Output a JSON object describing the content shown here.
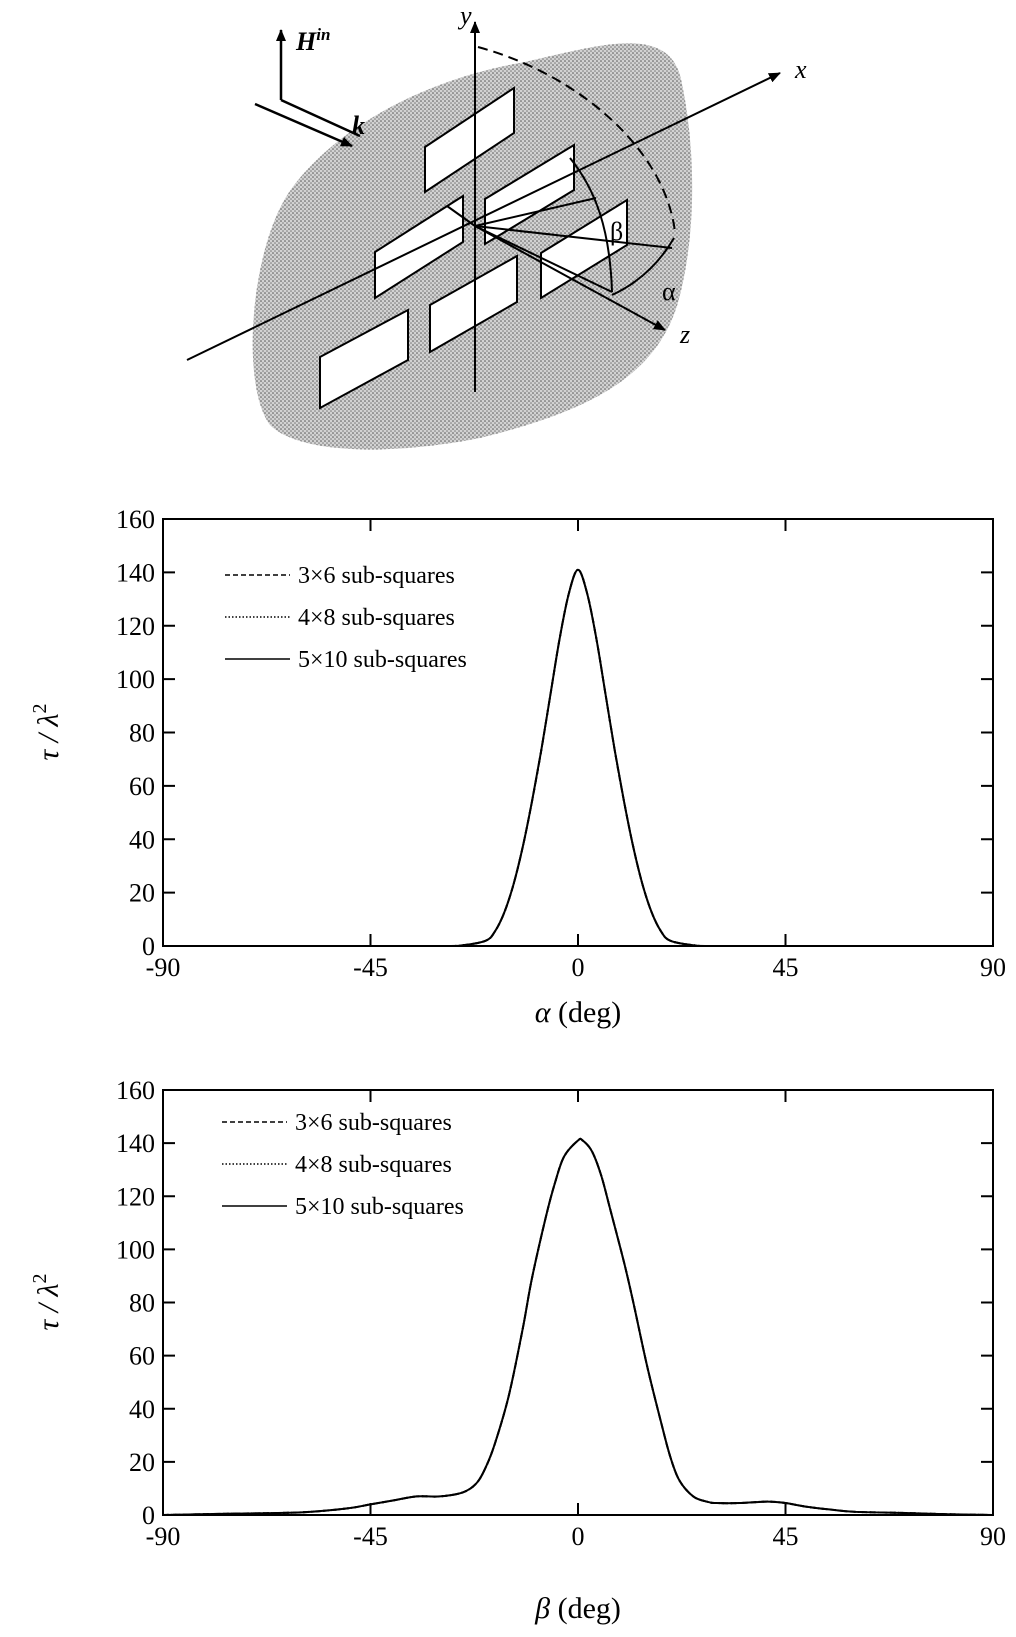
{
  "diagram": {
    "labels": {
      "h_in": "H",
      "h_in_sup": "in",
      "k": "k",
      "x": "x",
      "y": "y",
      "z": "z",
      "alpha": "α",
      "beta": "β"
    }
  },
  "chart_data": [
    {
      "type": "line",
      "title": "",
      "xlabel_symbol": "α",
      "xlabel_rest": " (deg)",
      "ylabel_tau": "τ / λ",
      "ylabel_sup": "2",
      "xlim": [
        -90,
        90
      ],
      "ylim": [
        0,
        160
      ],
      "xticks": [
        -90,
        -45,
        0,
        45,
        90
      ],
      "yticks": [
        0,
        20,
        40,
        60,
        80,
        100,
        120,
        140,
        160
      ],
      "legend_position": "top-left",
      "series": [
        {
          "name": "3×6 sub-squares",
          "style": "dashed",
          "x": [
            -90,
            -60,
            -30,
            -25,
            -20,
            -18,
            -16,
            -14,
            -12,
            -10,
            -8,
            -6,
            -4,
            -2,
            0,
            2,
            4,
            6,
            8,
            10,
            12,
            14,
            16,
            18,
            20,
            25,
            30,
            60,
            90
          ],
          "y": [
            0,
            0,
            0,
            0.3,
            2,
            5.5,
            12.5,
            23,
            37,
            54,
            73,
            94,
            115,
            132,
            141,
            132,
            115,
            94,
            73,
            54,
            37,
            23,
            12.5,
            5.5,
            2,
            0.3,
            0,
            0,
            0
          ]
        },
        {
          "name": "4×8 sub-squares",
          "style": "dotted",
          "x": [
            -90,
            -60,
            -30,
            -25,
            -20,
            -18,
            -16,
            -14,
            -12,
            -10,
            -8,
            -6,
            -4,
            -2,
            0,
            2,
            4,
            6,
            8,
            10,
            12,
            14,
            16,
            18,
            20,
            25,
            30,
            60,
            90
          ],
          "y": [
            0,
            0,
            0,
            0.3,
            2,
            5.5,
            12.5,
            23,
            37,
            54,
            73,
            94,
            115,
            132,
            141,
            132,
            115,
            94,
            73,
            54,
            37,
            23,
            12.5,
            5.5,
            2,
            0.3,
            0,
            0,
            0
          ]
        },
        {
          "name": "5×10 sub-squares",
          "style": "solid",
          "x": [
            -90,
            -60,
            -30,
            -25,
            -20,
            -18,
            -16,
            -14,
            -12,
            -10,
            -8,
            -6,
            -4,
            -2,
            0,
            2,
            4,
            6,
            8,
            10,
            12,
            14,
            16,
            18,
            20,
            25,
            30,
            60,
            90
          ],
          "y": [
            0,
            0,
            0,
            0.3,
            2,
            5.5,
            12.5,
            23,
            37,
            54,
            73,
            94,
            115,
            132,
            141,
            132,
            115,
            94,
            73,
            54,
            37,
            23,
            12.5,
            5.5,
            2,
            0.3,
            0,
            0,
            0
          ]
        }
      ]
    },
    {
      "type": "line",
      "title": "",
      "xlabel_symbol": "β",
      "xlabel_rest": " (deg)",
      "ylabel_tau": "τ / λ",
      "ylabel_sup": "2",
      "xlim": [
        -90,
        90
      ],
      "ylim": [
        0,
        160
      ],
      "xticks": [
        -90,
        -45,
        0,
        45,
        90
      ],
      "yticks": [
        0,
        20,
        40,
        60,
        80,
        100,
        120,
        140,
        160
      ],
      "legend_position": "top-left",
      "series": [
        {
          "name": "3×6 sub-squares",
          "style": "dashed",
          "x": [
            -90,
            -75,
            -60,
            -50,
            -45,
            -40,
            -35,
            -30,
            -25,
            -22,
            -20,
            -18,
            -15,
            -12,
            -10,
            -7,
            -5,
            -3,
            0,
            1,
            3,
            5,
            7,
            10,
            12,
            15,
            18,
            20,
            22,
            25,
            28,
            30,
            35,
            40,
            42,
            45,
            50,
            55,
            60,
            70,
            80,
            90
          ],
          "y": [
            0,
            0.5,
            1,
            2.5,
            4,
            5.5,
            7,
            7,
            8.5,
            12,
            18,
            27,
            45,
            70,
            89,
            112,
            125,
            135,
            141,
            141,
            137,
            128,
            115,
            95,
            80,
            56,
            35,
            22,
            13,
            7,
            5,
            4.5,
            4.5,
            5,
            5,
            4.5,
            3,
            2,
            1.2,
            0.8,
            0.3,
            0
          ]
        },
        {
          "name": "4×8 sub-squares",
          "style": "dotted",
          "x": [
            -90,
            -75,
            -60,
            -50,
            -45,
            -40,
            -35,
            -30,
            -25,
            -22,
            -20,
            -18,
            -15,
            -12,
            -10,
            -7,
            -5,
            -3,
            0,
            1,
            3,
            5,
            7,
            10,
            12,
            15,
            18,
            20,
            22,
            25,
            28,
            30,
            35,
            40,
            42,
            45,
            50,
            55,
            60,
            70,
            80,
            90
          ],
          "y": [
            0,
            0.5,
            1,
            2.5,
            4,
            5.5,
            7,
            7,
            8.5,
            12,
            18,
            27,
            45,
            70,
            89,
            112,
            125,
            135,
            141,
            141,
            137,
            128,
            115,
            95,
            80,
            56,
            35,
            22,
            13,
            7,
            5,
            4.5,
            4.5,
            5,
            5,
            4.5,
            3,
            2,
            1.2,
            0.8,
            0.3,
            0
          ]
        },
        {
          "name": "5×10 sub-squares",
          "style": "solid",
          "x": [
            -90,
            -75,
            -60,
            -50,
            -45,
            -40,
            -35,
            -30,
            -25,
            -22,
            -20,
            -18,
            -15,
            -12,
            -10,
            -7,
            -5,
            -3,
            0,
            1,
            3,
            5,
            7,
            10,
            12,
            15,
            18,
            20,
            22,
            25,
            28,
            30,
            35,
            40,
            42,
            45,
            50,
            55,
            60,
            70,
            80,
            90
          ],
          "y": [
            0,
            0.5,
            1,
            2.5,
            4,
            5.5,
            7,
            7,
            8.5,
            12,
            18,
            27,
            45,
            70,
            89,
            112,
            125,
            135,
            141,
            141,
            137,
            128,
            115,
            95,
            80,
            56,
            35,
            22,
            13,
            7,
            5,
            4.5,
            4.5,
            5,
            5,
            4.5,
            3,
            2,
            1.2,
            0.8,
            0.3,
            0
          ]
        }
      ]
    }
  ]
}
